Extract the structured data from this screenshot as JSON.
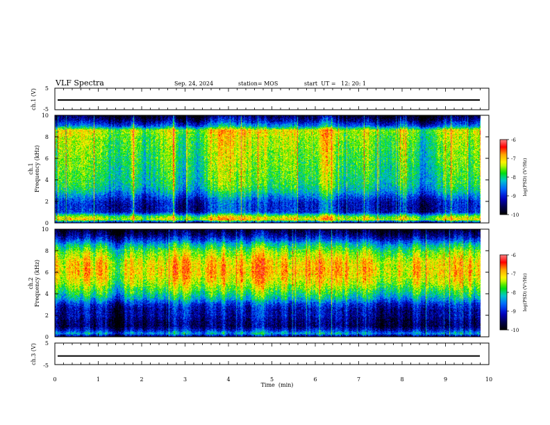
{
  "header": {
    "title": "VLF Spectra",
    "date": "Sep. 24, 2024",
    "station": "station= MOS",
    "start": "start  UT =   12: 20: 1"
  },
  "colorbar": {
    "label": "log(PSD) (V²/Hz)",
    "ticks": [
      "-6",
      "-7",
      "-8",
      "-9",
      "-10"
    ],
    "colors": [
      "#ffffff",
      "#ff6a6a",
      "#ff0000",
      "#ffa500",
      "#ffff00",
      "#00e000",
      "#00cccc",
      "#0064ff",
      "#0000c8",
      "#000000"
    ]
  },
  "chart_data": [
    {
      "type": "line",
      "name": "ch.1 waveform",
      "ylabel": "ch.1 (V)",
      "ylim": [
        -5,
        5
      ],
      "yticks": [
        "5",
        "-5"
      ],
      "x": [
        0,
        10
      ],
      "y": [
        -0.5,
        -0.5
      ],
      "xlim": [
        0,
        10
      ]
    },
    {
      "type": "heatmap",
      "name": "ch.1 spectrogram",
      "ylabel_top": "ch.1",
      "ylabel": "Frequency (kHz)",
      "ylim": [
        0,
        10
      ],
      "yticks": [
        "0",
        "2",
        "4",
        "6",
        "8",
        "10"
      ],
      "xlim": [
        0,
        10
      ],
      "data_end_min": 9.8,
      "zrange": [
        -10,
        -6
      ],
      "profile": {
        "freq_khz": [
          0,
          0.3,
          0.6,
          1.0,
          1.5,
          2.0,
          2.5,
          3.0,
          3.5,
          4.0,
          5.0,
          6.0,
          7.0,
          8.0,
          8.6,
          9.0,
          9.5,
          10.0
        ],
        "log_psd": [
          -9.5,
          -7.2,
          -7.6,
          -9.0,
          -9.1,
          -9.0,
          -8.6,
          -8.2,
          -8.0,
          -7.9,
          -7.8,
          -7.7,
          -7.6,
          -7.5,
          -7.3,
          -8.6,
          -9.3,
          -9.8
        ]
      }
    },
    {
      "type": "heatmap",
      "name": "ch.2 spectrogram",
      "ylabel_top": "ch.2",
      "ylabel": "Frequency (kHz)",
      "ylim": [
        0,
        10
      ],
      "yticks": [
        "0",
        "2",
        "4",
        "6",
        "8",
        "10"
      ],
      "xlim": [
        0,
        10
      ],
      "data_end_min": 9.8,
      "zrange": [
        -10,
        -6
      ],
      "profile": {
        "freq_khz": [
          0,
          0.3,
          0.6,
          1.0,
          1.5,
          2.0,
          2.5,
          3.0,
          3.5,
          4.0,
          5.0,
          6.0,
          7.0,
          8.0,
          8.6,
          9.0,
          9.5,
          10.0
        ],
        "log_psd": [
          -9.6,
          -8.3,
          -9.0,
          -9.5,
          -9.4,
          -9.2,
          -9.2,
          -8.9,
          -8.3,
          -7.9,
          -7.3,
          -7.0,
          -7.1,
          -7.6,
          -8.2,
          -8.8,
          -9.4,
          -9.8
        ]
      }
    },
    {
      "type": "line",
      "name": "ch.3 waveform",
      "ylabel": "ch.3 (V)",
      "ylim": [
        -5,
        5
      ],
      "yticks": [
        "5",
        "-5"
      ],
      "x": [
        0,
        10
      ],
      "y": [
        -1,
        -1
      ],
      "xlim": [
        0,
        10
      ]
    }
  ],
  "xaxis": {
    "label": "Time  (min)",
    "ticks": [
      "0",
      "1",
      "2",
      "3",
      "4",
      "5",
      "6",
      "7",
      "8",
      "9",
      "10"
    ]
  }
}
